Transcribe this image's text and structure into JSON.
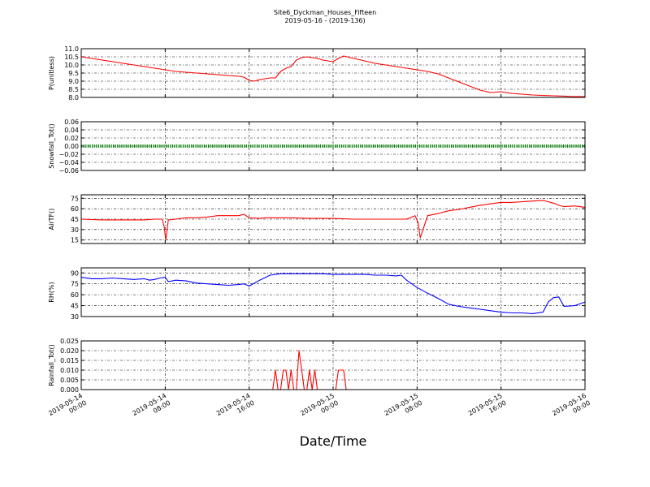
{
  "chart_data": {
    "type": "line",
    "title": "Site6_Dyckman_Houses_Fifteen",
    "subtitle": "2019-05-16 - (2019-136)",
    "xlabel": "Date/Time",
    "x_ticks": [
      "2019-05-14\n00:00",
      "2019-05-14\n08:00",
      "2019-05-14\n16:00",
      "2019-05-15\n00:00",
      "2019-05-15\n08:00",
      "2019-05-15\n16:00",
      "2019-05-16\n00:00"
    ],
    "x_range_hours": [
      0,
      48
    ],
    "grid": true,
    "panels": [
      {
        "ylabel": "P(unitless)",
        "ylim": [
          8.0,
          11.0
        ],
        "yticks": [
          "11.0",
          "10.5",
          "10.0",
          "9.5",
          "9.0",
          "8.5",
          "8.0"
        ],
        "ytick_values": [
          11.0,
          10.5,
          10.0,
          9.5,
          9.0,
          8.5,
          8.0
        ],
        "color": "#ff0000",
        "style": "line",
        "x": [
          0,
          1,
          2,
          3,
          4,
          5,
          6,
          7,
          8,
          9,
          10,
          11,
          12,
          13,
          14,
          15,
          15.5,
          16,
          16.5,
          17,
          17.5,
          18,
          18.5,
          19,
          19.5,
          20,
          20.5,
          21,
          21.5,
          22,
          22.5,
          23,
          23.5,
          24,
          24.5,
          25,
          26,
          27,
          28,
          29,
          30,
          31,
          32,
          33,
          34,
          35,
          36,
          37,
          38,
          39,
          40,
          41,
          42,
          43,
          44,
          45,
          46,
          47,
          48
        ],
        "y": [
          10.5,
          10.4,
          10.3,
          10.2,
          10.1,
          10.0,
          9.9,
          9.8,
          9.7,
          9.6,
          9.55,
          9.5,
          9.45,
          9.4,
          9.35,
          9.3,
          9.25,
          9.05,
          9.0,
          9.1,
          9.15,
          9.2,
          9.2,
          9.6,
          9.8,
          9.9,
          10.3,
          10.45,
          10.5,
          10.45,
          10.4,
          10.3,
          10.25,
          10.2,
          10.4,
          10.55,
          10.4,
          10.25,
          10.1,
          10.0,
          9.9,
          9.8,
          9.7,
          9.6,
          9.45,
          9.2,
          8.95,
          8.7,
          8.45,
          8.3,
          8.35,
          8.25,
          8.2,
          8.15,
          8.12,
          8.1,
          8.08,
          8.05,
          8.05
        ]
      },
      {
        "ylabel": "Snowfall_Tot()",
        "ylim": [
          -0.06,
          0.06
        ],
        "yticks": [
          "0.06",
          "0.04",
          "0.02",
          "0.00",
          "−0.02",
          "−0.04",
          "−0.06"
        ],
        "ytick_values": [
          0.06,
          0.04,
          0.02,
          0.0,
          -0.02,
          -0.04,
          -0.06
        ],
        "color": "#008000",
        "style": "dots",
        "x": [
          0,
          48
        ],
        "y": [
          0.0,
          0.0
        ]
      },
      {
        "ylabel": "AirTF()",
        "ylim": [
          10,
          80
        ],
        "yticks": [
          "75",
          "60",
          "45",
          "30",
          "15"
        ],
        "ytick_values": [
          75,
          60,
          45,
          30,
          15
        ],
        "color": "#ff0000",
        "style": "line",
        "x": [
          0,
          2,
          4,
          6,
          7,
          7.7,
          7.9,
          8.05,
          8.3,
          9,
          10,
          11,
          12,
          13,
          14,
          15,
          15.5,
          16,
          17,
          17.5,
          18,
          20,
          22,
          24,
          26,
          28,
          30,
          31,
          31.5,
          31.8,
          32.1,
          32.3,
          33,
          34,
          35,
          36,
          37,
          38,
          39,
          40,
          41,
          42,
          43,
          44,
          45,
          45.5,
          46,
          47,
          48
        ],
        "y": [
          45,
          44,
          44,
          44,
          45,
          45,
          35,
          15,
          44,
          45,
          47,
          47,
          48,
          50,
          50,
          50,
          52,
          47,
          46,
          47,
          47,
          47,
          46,
          46,
          45,
          45,
          45,
          45,
          48,
          50,
          40,
          18,
          50,
          53,
          57,
          59,
          62,
          65,
          67,
          69,
          69,
          70,
          71,
          72,
          68,
          65,
          63,
          64,
          62
        ]
      },
      {
        "ylabel": "RH(%)",
        "ylim": [
          30,
          97
        ],
        "yticks": [
          "90",
          "75",
          "60",
          "45",
          "30"
        ],
        "ytick_values": [
          90,
          75,
          60,
          45,
          30
        ],
        "color": "#0000ff",
        "style": "line",
        "x": [
          0,
          1,
          2,
          3,
          4,
          5,
          6,
          6.5,
          7,
          7.5,
          8,
          8.3,
          9,
          10,
          11,
          12,
          13,
          14,
          15,
          15.5,
          16,
          17,
          18,
          19,
          20,
          21,
          22,
          23,
          24,
          25,
          26,
          27,
          28,
          29,
          30,
          30.5,
          31,
          32,
          33,
          34,
          35,
          36,
          37,
          38,
          39,
          40,
          41,
          42,
          43,
          44,
          44.5,
          45,
          45.5,
          46,
          47,
          48
        ],
        "y": [
          84,
          82,
          82,
          83,
          82,
          81,
          82,
          80,
          81,
          83,
          84,
          78,
          80,
          79,
          76,
          75,
          74,
          73,
          74,
          75,
          72,
          80,
          87,
          89,
          89,
          89,
          89,
          89,
          88,
          88,
          88,
          88,
          87,
          87,
          86,
          87,
          80,
          70,
          62,
          55,
          47,
          44,
          42,
          40,
          38,
          36,
          35,
          35,
          34,
          36,
          50,
          56,
          57,
          44,
          45,
          50
        ]
      },
      {
        "ylabel": "Rainfall_Tot()",
        "ylim": [
          0,
          0.025
        ],
        "yticks": [
          "0.025",
          "0.020",
          "0.015",
          "0.010",
          "0.005",
          "0.000"
        ],
        "ytick_values": [
          0.025,
          0.02,
          0.015,
          0.01,
          0.005,
          0.0
        ],
        "color": "#ff0000",
        "style": "line",
        "x": [
          0,
          18,
          18.25,
          18.5,
          18.75,
          19,
          19.25,
          19.5,
          19.75,
          20,
          20.25,
          20.5,
          20.75,
          21,
          21.25,
          21.5,
          21.75,
          22,
          22.25,
          22.5,
          22.75,
          23,
          23.25,
          23.5,
          24,
          24.25,
          24.5,
          24.75,
          25,
          25.25,
          25.5,
          48
        ],
        "y": [
          0,
          0,
          0,
          0.01,
          0,
          0,
          0.01,
          0.01,
          0,
          0.01,
          0,
          0,
          0.02,
          0.01,
          0,
          0,
          0.01,
          0,
          0.01,
          0,
          0,
          0,
          0,
          0,
          0,
          0,
          0.01,
          0.01,
          0.01,
          0,
          0,
          0
        ]
      }
    ]
  }
}
